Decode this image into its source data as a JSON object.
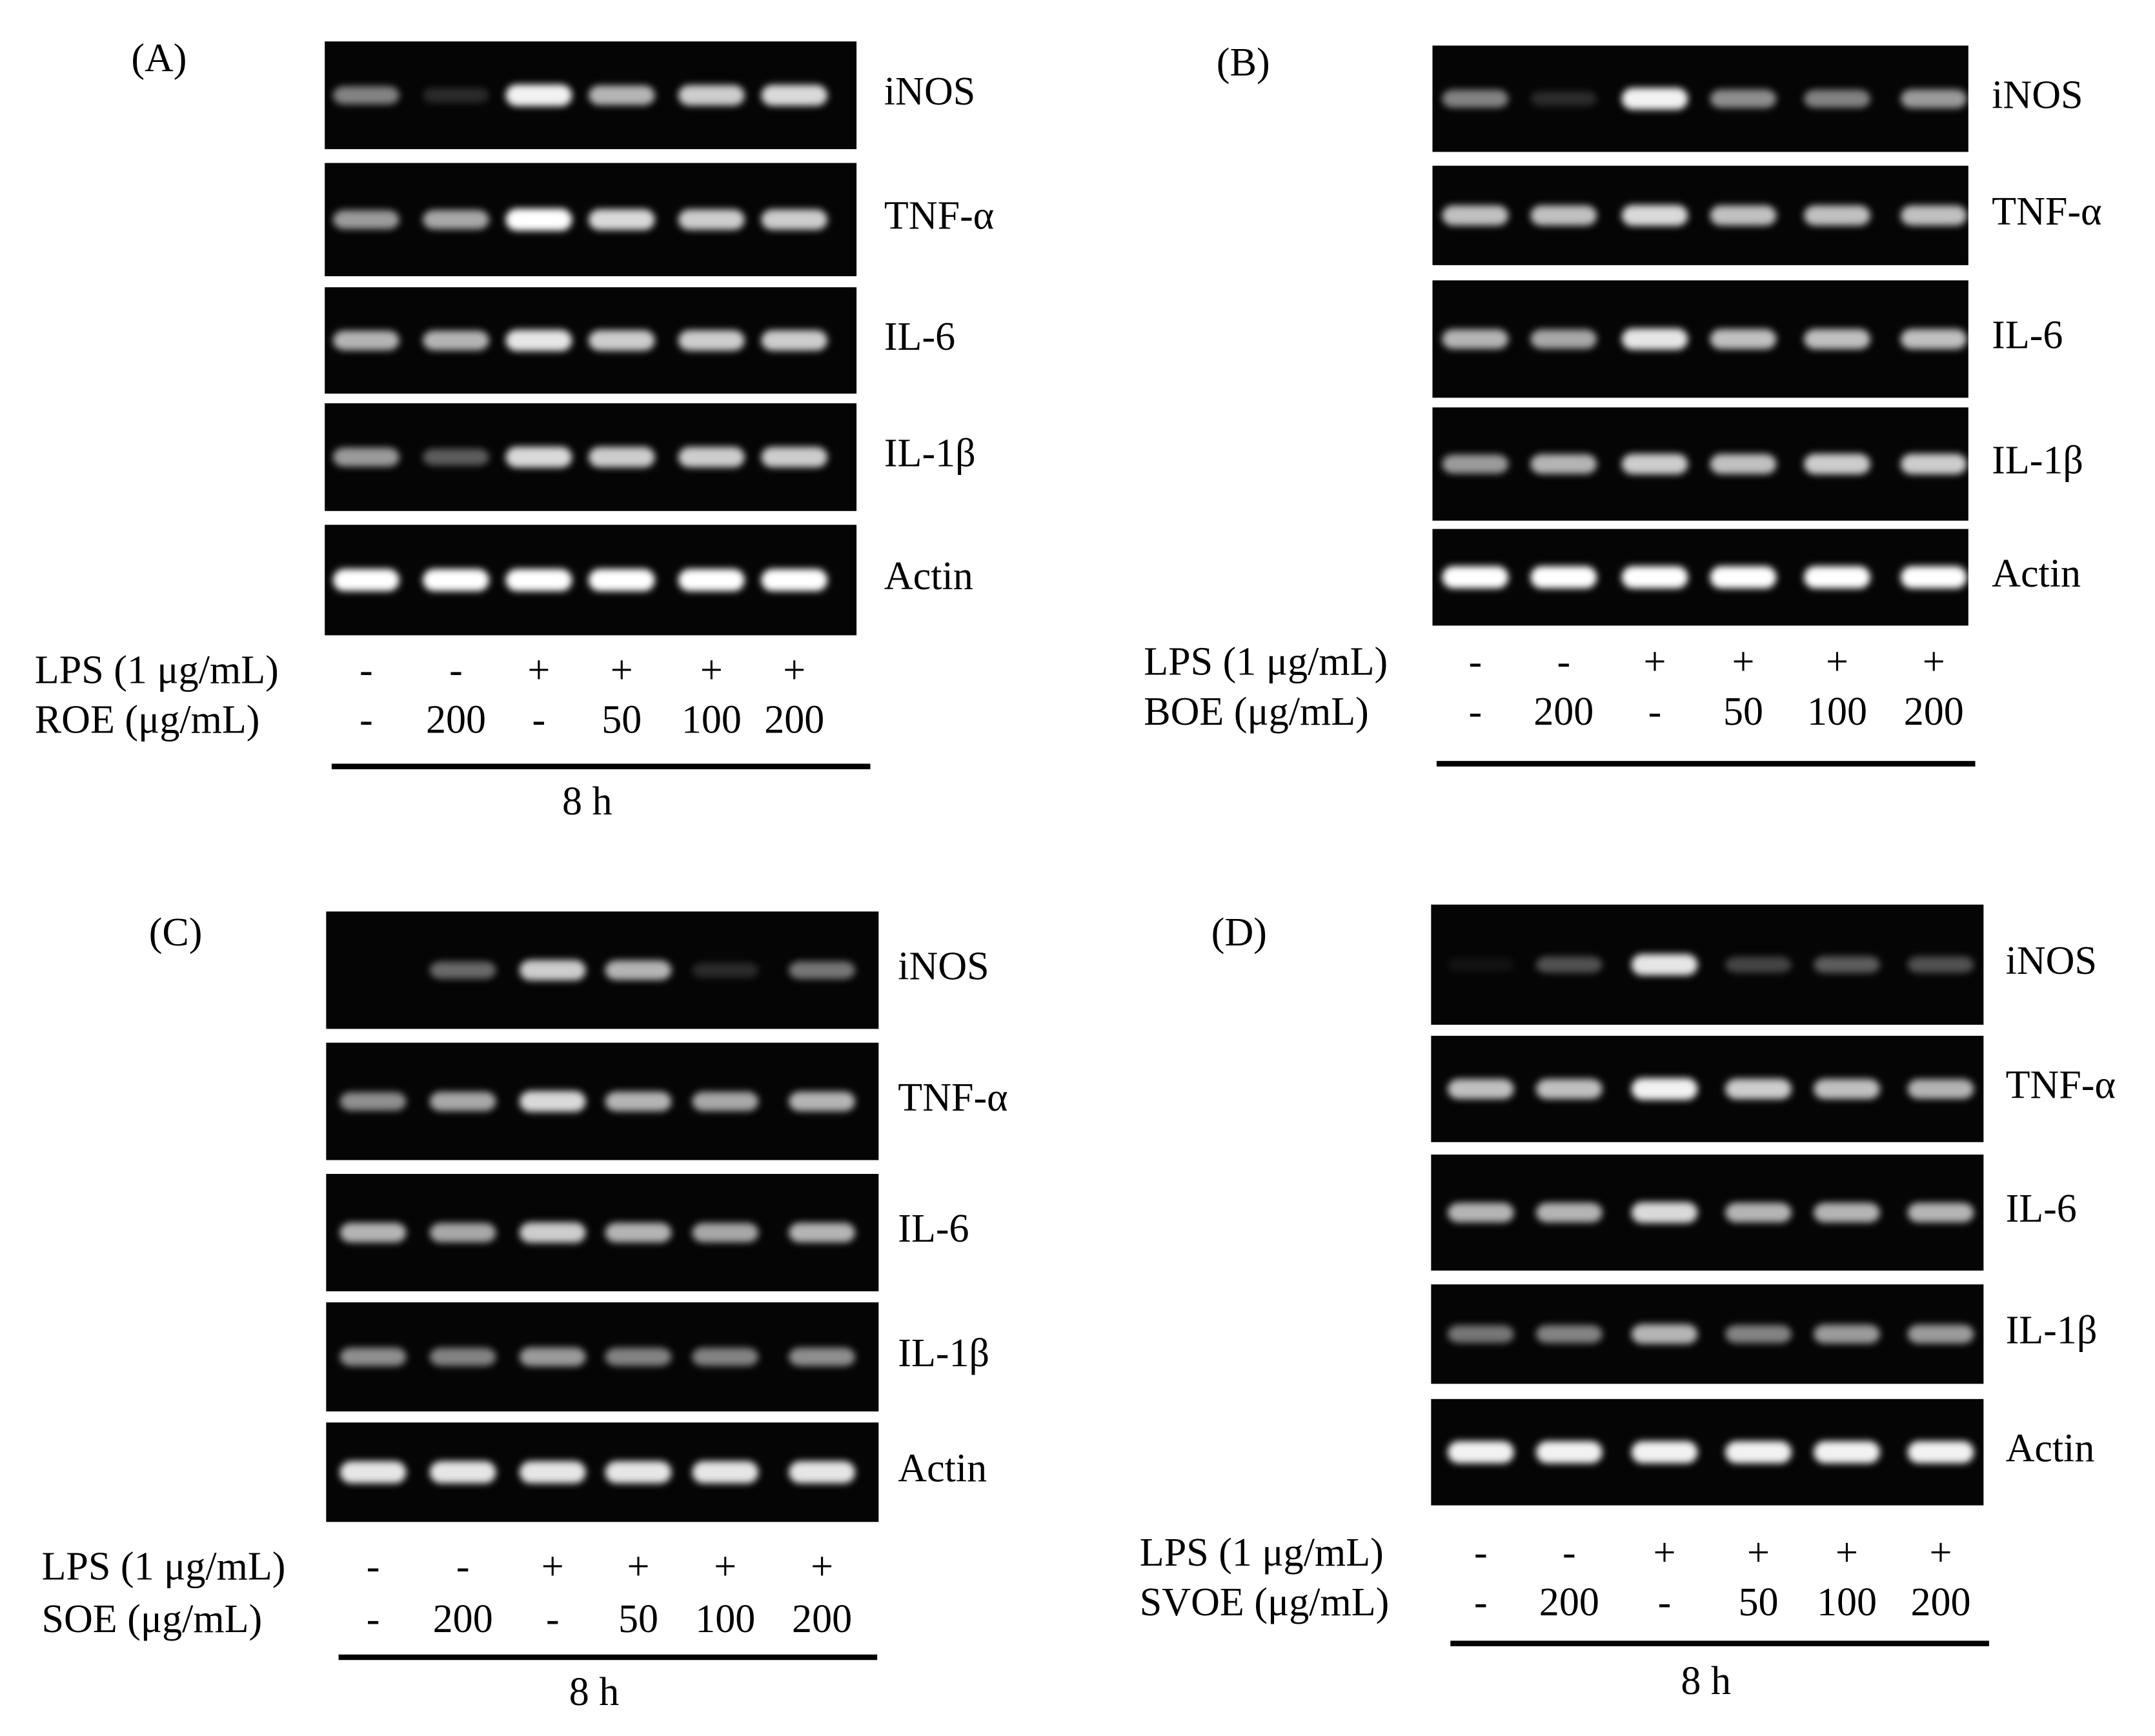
{
  "panels": [
    {
      "label": "(A)",
      "genes": [
        "iNOS",
        "TNF-α",
        "IL-6",
        "IL-1β",
        "Actin"
      ],
      "treatments": [
        {
          "label": "LPS (1 μg/mL)",
          "values": [
            "-",
            "-",
            "+",
            "+",
            "+",
            "+"
          ]
        },
        {
          "label": "ROE (μg/mL)",
          "values": [
            "-",
            "200",
            "-",
            "50",
            "100",
            "200"
          ]
        }
      ],
      "time": "8 h"
    },
    {
      "label": "(B)",
      "genes": [
        "iNOS",
        "TNF-α",
        "IL-6",
        "IL-1β",
        "Actin"
      ],
      "treatments": [
        {
          "label": "LPS (1 μg/mL)",
          "values": [
            "-",
            "-",
            "+",
            "+",
            "+",
            "+"
          ]
        },
        {
          "label": "BOE (μg/mL)",
          "values": [
            "-",
            "200",
            "-",
            "50",
            "100",
            "200"
          ]
        }
      ]
    },
    {
      "label": "(C)",
      "genes": [
        "iNOS",
        "TNF-α",
        "IL-6",
        "IL-1β",
        "Actin"
      ],
      "treatments": [
        {
          "label": "LPS (1 μg/mL)",
          "values": [
            "-",
            "-",
            "+",
            "+",
            "+",
            "+"
          ]
        },
        {
          "label": "SOE (μg/mL)",
          "values": [
            "-",
            "200",
            "-",
            "50",
            "100",
            "200"
          ]
        }
      ],
      "time": "8 h"
    },
    {
      "label": "(D)",
      "genes": [
        "iNOS",
        "TNF-α",
        "IL-6",
        "IL-1β",
        "Actin"
      ],
      "treatments": [
        {
          "label": "LPS (1 μg/mL)",
          "values": [
            "-",
            "-",
            "+",
            "+",
            "+",
            "+"
          ]
        },
        {
          "label": "SVOE (μg/mL)",
          "values": [
            "-",
            "200",
            "-",
            "50",
            "100",
            "200"
          ]
        }
      ],
      "time": "8 h"
    }
  ]
}
